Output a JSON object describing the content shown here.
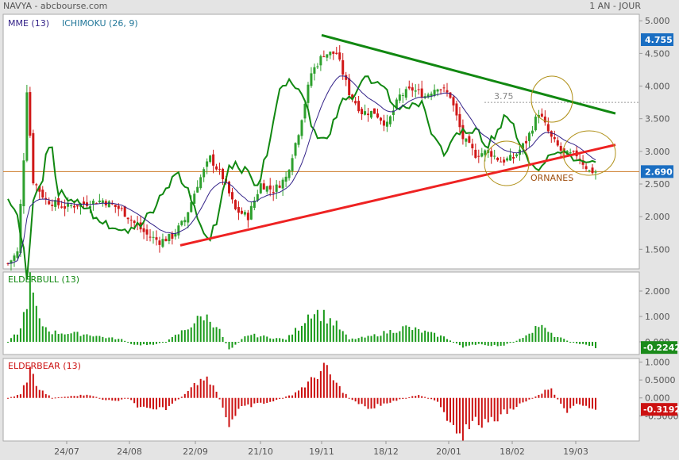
{
  "header": {
    "left": "NAVYA - abcbourse.com",
    "right": "1 AN - JOUR"
  },
  "colors": {
    "up": "#2ea02e",
    "down": "#d01818",
    "ichimoku": "#118811",
    "mme": "#332288",
    "support": "#ee2222",
    "resistance": "#118811",
    "ellipse": "#b09018"
  },
  "chart_data": [
    {
      "type": "candlestick",
      "panel": "price",
      "legend": [
        "MME (13)",
        "ICHIMOKU (26, 9)"
      ],
      "ylim": [
        1.2,
        5.1
      ],
      "yticks": [
        "5.000",
        "4.500",
        "4.000",
        "3.500",
        "3.000",
        "2.500",
        "2.000",
        "1.500"
      ],
      "xticks": [
        "24/07",
        "24/08",
        "22/09",
        "21/10",
        "19/11",
        "18/12",
        "20/01",
        "18/02",
        "19/03"
      ],
      "badges": {
        "top": "4.755",
        "last": "2.690"
      },
      "hline": {
        "value": 2.69
      },
      "dotted_level": {
        "value": 3.75,
        "label": "3.75"
      },
      "pattern_label": "ORNANES",
      "support_line": {
        "from": 1.56,
        "to": 3.1
      },
      "resistance_line": {
        "from": 4.78,
        "to": 3.58
      },
      "anchors": [
        [
          0,
          1.28
        ],
        [
          3,
          1.45
        ],
        [
          5,
          2.9
        ],
        [
          6,
          3.95
        ],
        [
          8,
          2.55
        ],
        [
          12,
          2.25
        ],
        [
          18,
          2.15
        ],
        [
          24,
          2.2
        ],
        [
          30,
          2.25
        ],
        [
          36,
          2.1
        ],
        [
          40,
          1.9
        ],
        [
          44,
          1.72
        ],
        [
          48,
          1.62
        ],
        [
          52,
          1.7
        ],
        [
          56,
          1.95
        ],
        [
          60,
          2.5
        ],
        [
          64,
          2.9
        ],
        [
          68,
          2.6
        ],
        [
          72,
          2.1
        ],
        [
          76,
          2.0
        ],
        [
          80,
          2.5
        ],
        [
          84,
          2.4
        ],
        [
          88,
          2.6
        ],
        [
          92,
          3.3
        ],
        [
          96,
          4.2
        ],
        [
          100,
          4.5
        ],
        [
          104,
          4.5
        ],
        [
          108,
          3.9
        ],
        [
          112,
          3.6
        ],
        [
          116,
          3.6
        ],
        [
          120,
          3.4
        ],
        [
          124,
          3.85
        ],
        [
          128,
          3.95
        ],
        [
          132,
          3.85
        ],
        [
          136,
          4.0
        ],
        [
          140,
          3.85
        ],
        [
          144,
          3.2
        ],
        [
          148,
          2.95
        ],
        [
          152,
          3.0
        ],
        [
          156,
          2.85
        ],
        [
          160,
          2.9
        ],
        [
          164,
          3.15
        ],
        [
          168,
          3.6
        ],
        [
          172,
          3.2
        ],
        [
          176,
          2.95
        ],
        [
          180,
          2.95
        ],
        [
          184,
          2.7
        ],
        [
          186,
          2.69
        ]
      ]
    },
    {
      "type": "bar",
      "panel": "elderbull",
      "legend": [
        "ELDERBULL (13)"
      ],
      "ylim": [
        -0.5,
        2.75
      ],
      "yticks": [
        "2.000",
        "1.000",
        "0.000"
      ],
      "badge": "-0.2242",
      "anchors": [
        [
          0,
          0
        ],
        [
          4,
          0.5
        ],
        [
          7,
          2.4
        ],
        [
          10,
          0.8
        ],
        [
          14,
          0.4
        ],
        [
          20,
          0.35
        ],
        [
          26,
          0.3
        ],
        [
          30,
          0.2
        ],
        [
          36,
          0.1
        ],
        [
          40,
          -0.15
        ],
        [
          46,
          -0.1
        ],
        [
          50,
          0
        ],
        [
          56,
          0.5
        ],
        [
          62,
          1.1
        ],
        [
          66,
          0.7
        ],
        [
          70,
          -0.3
        ],
        [
          76,
          0.3
        ],
        [
          82,
          0.2
        ],
        [
          88,
          0.1
        ],
        [
          92,
          0.6
        ],
        [
          96,
          1.3
        ],
        [
          100,
          1.1
        ],
        [
          104,
          0.7
        ],
        [
          108,
          0.1
        ],
        [
          114,
          0.2
        ],
        [
          120,
          0.4
        ],
        [
          126,
          0.6
        ],
        [
          132,
          0.4
        ],
        [
          138,
          0.2
        ],
        [
          144,
          -0.2
        ],
        [
          150,
          -0.1
        ],
        [
          156,
          -0.2
        ],
        [
          162,
          0.1
        ],
        [
          168,
          0.7
        ],
        [
          172,
          0.3
        ],
        [
          178,
          0
        ],
        [
          186,
          -0.22
        ]
      ]
    },
    {
      "type": "bar",
      "panel": "elderbear",
      "legend": [
        "ELDERBEAR (13)"
      ],
      "ylim": [
        -1.2,
        1.1
      ],
      "yticks": [
        "1.000",
        "0.5000",
        "0.000",
        "-0.5000"
      ],
      "badge": "-0.3192",
      "anchors": [
        [
          0,
          0
        ],
        [
          4,
          0.1
        ],
        [
          7,
          0.8
        ],
        [
          10,
          0.25
        ],
        [
          14,
          0
        ],
        [
          20,
          0.05
        ],
        [
          26,
          0.1
        ],
        [
          30,
          -0.05
        ],
        [
          34,
          -0.1
        ],
        [
          38,
          0
        ],
        [
          42,
          -0.3
        ],
        [
          46,
          -0.4
        ],
        [
          50,
          -0.3
        ],
        [
          56,
          0.1
        ],
        [
          62,
          0.6
        ],
        [
          66,
          0.2
        ],
        [
          70,
          -0.75
        ],
        [
          74,
          -0.3
        ],
        [
          78,
          -0.2
        ],
        [
          84,
          -0.1
        ],
        [
          90,
          0.1
        ],
        [
          96,
          0.5
        ],
        [
          100,
          0.9
        ],
        [
          104,
          0.4
        ],
        [
          108,
          0
        ],
        [
          114,
          -0.3
        ],
        [
          118,
          -0.2
        ],
        [
          124,
          -0.05
        ],
        [
          130,
          0.1
        ],
        [
          136,
          -0.1
        ],
        [
          140,
          -0.7
        ],
        [
          144,
          -1.0
        ],
        [
          148,
          -0.7
        ],
        [
          152,
          -0.8
        ],
        [
          156,
          -0.5
        ],
        [
          160,
          -0.3
        ],
        [
          164,
          -0.1
        ],
        [
          168,
          0.1
        ],
        [
          172,
          0.3
        ],
        [
          176,
          -0.4
        ],
        [
          180,
          -0.2
        ],
        [
          186,
          -0.32
        ]
      ]
    }
  ]
}
